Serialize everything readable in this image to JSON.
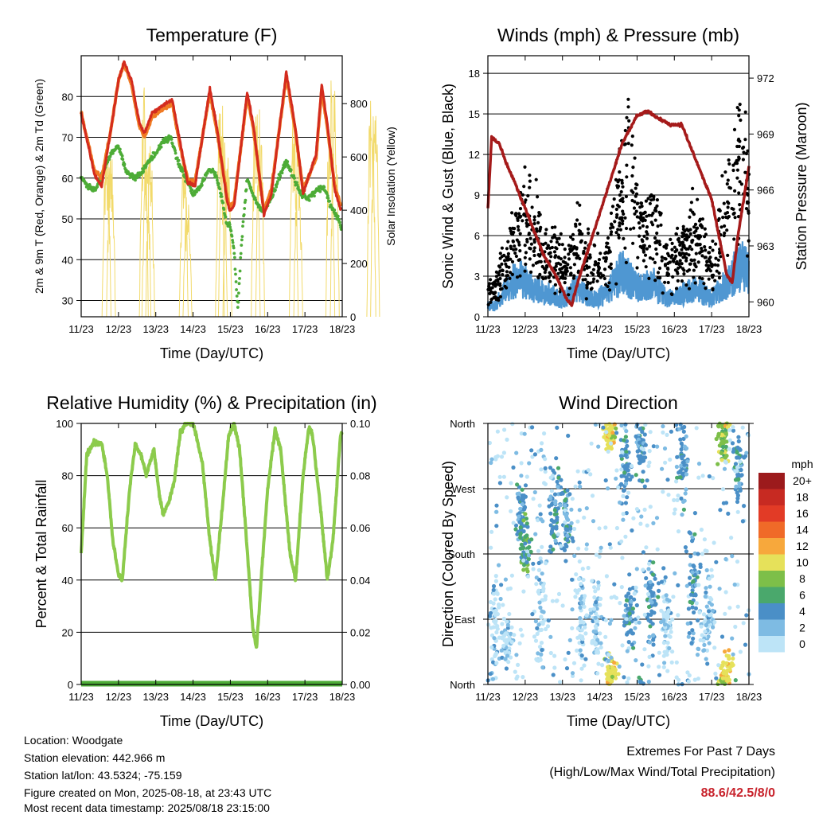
{
  "colors": {
    "temp_red": "#d32b1e",
    "temp_orange": "#f07a23",
    "dewpoint": "#4dac37",
    "solar": "#f2da6b",
    "wind": "#4f97d2",
    "gust": "#000000",
    "pressure": "#a51a1a",
    "rh": "#8ccb4c",
    "precip": "#4dac37",
    "extreme_value": "#c8232c"
  },
  "charts": [
    {
      "id": "temperature",
      "type": "line",
      "title": "Temperature (F)",
      "xlabel": "Time (Day/UTC)",
      "ylabel": "2m & 9m T (Red, Orange) & 2m Td (Green)",
      "y2label": "Solar Insolation (Yellow)",
      "x_ticks": [
        "11/23",
        "12/23",
        "13/23",
        "14/23",
        "15/23",
        "16/23",
        "17/23",
        "18/23"
      ],
      "ylim": [
        26,
        90
      ],
      "yticks": [
        30,
        40,
        50,
        60,
        70,
        80
      ],
      "y2lim": [
        0,
        980
      ],
      "y2ticks": [
        0,
        200,
        400,
        600,
        800
      ],
      "grid": true
    },
    {
      "id": "winds",
      "type": "scatter",
      "title": "Winds (mph) & Pressure (mb)",
      "xlabel": "Time (Day/UTC)",
      "ylabel": "Sonic Wind & Gust (Blue, Black)",
      "y2label": "Station Pressure (Maroon)",
      "x_ticks": [
        "11/23",
        "12/23",
        "13/23",
        "14/23",
        "15/23",
        "16/23",
        "17/23",
        "18/23"
      ],
      "ylim": [
        0,
        19.3
      ],
      "yticks": [
        0,
        3,
        6,
        9,
        12,
        15,
        18
      ],
      "y2lim": [
        959.2,
        973.2
      ],
      "y2ticks": [
        960,
        963,
        966,
        969,
        972
      ],
      "grid": true
    },
    {
      "id": "humidity",
      "type": "line",
      "title": "Relative Humidity (%) & Precipitation (in)",
      "xlabel": "Time (Day/UTC)",
      "ylabel": "Percent & Total Rainfall",
      "x_ticks": [
        "11/23",
        "12/23",
        "13/23",
        "14/23",
        "15/23",
        "16/23",
        "17/23",
        "18/23"
      ],
      "ylim": [
        0,
        100
      ],
      "yticks": [
        0,
        20,
        40,
        60,
        80,
        100
      ],
      "y2lim": [
        0,
        0.1
      ],
      "y2ticks": [
        "0.00",
        "0.02",
        "0.04",
        "0.06",
        "0.08",
        "0.10"
      ],
      "grid": true
    },
    {
      "id": "direction",
      "type": "scatter",
      "title": "Wind Direction",
      "xlabel": "Time (Day/UTC)",
      "ylabel": "Direction (Colored By Speed)",
      "x_ticks": [
        "11/23",
        "12/23",
        "13/23",
        "14/23",
        "15/23",
        "16/23",
        "17/23",
        "18/23"
      ],
      "ylim": [
        0,
        360
      ],
      "ytick_labels": [
        "North",
        "East",
        "South",
        "West",
        "North"
      ],
      "grid": true
    }
  ],
  "chart_data": {
    "x_unit": "days since 11/23 00 UTC",
    "temperature": {
      "t2m": [
        [
          0,
          76
        ],
        [
          0.35,
          61
        ],
        [
          0.55,
          58
        ],
        [
          0.8,
          72
        ],
        [
          1.0,
          84
        ],
        [
          1.15,
          88.3
        ],
        [
          1.35,
          84
        ],
        [
          1.55,
          74
        ],
        [
          1.7,
          71
        ],
        [
          1.9,
          76
        ],
        [
          2.2,
          78
        ],
        [
          2.45,
          79
        ],
        [
          2.65,
          69
        ],
        [
          2.85,
          59
        ],
        [
          3.05,
          58
        ],
        [
          3.45,
          82
        ],
        [
          3.65,
          72
        ],
        [
          3.9,
          55
        ],
        [
          3.98,
          52
        ],
        [
          4.1,
          53
        ],
        [
          4.45,
          81
        ],
        [
          4.62,
          73
        ],
        [
          4.9,
          51
        ],
        [
          5.1,
          56
        ],
        [
          5.5,
          86
        ],
        [
          5.75,
          72
        ],
        [
          5.95,
          56
        ],
        [
          6.3,
          66
        ],
        [
          6.45,
          83
        ],
        [
          6.62,
          72
        ],
        [
          6.8,
          57
        ],
        [
          7.0,
          51
        ],
        [
          7.2,
          44
        ],
        [
          7.4,
          50
        ],
        [
          7.72,
          72
        ],
        [
          7.9,
          62
        ]
      ],
      "t9m": [
        [
          0,
          76
        ],
        [
          0.35,
          62
        ],
        [
          0.55,
          60
        ],
        [
          0.8,
          72
        ],
        [
          1.0,
          84
        ],
        [
          1.15,
          88
        ],
        [
          1.35,
          83
        ],
        [
          1.55,
          73
        ],
        [
          1.7,
          70
        ],
        [
          1.9,
          75
        ],
        [
          2.2,
          77
        ],
        [
          2.45,
          78
        ],
        [
          2.65,
          68
        ],
        [
          2.85,
          60
        ],
        [
          3.05,
          59
        ],
        [
          3.45,
          81
        ],
        [
          3.65,
          71
        ],
        [
          3.9,
          56
        ],
        [
          3.98,
          53
        ],
        [
          4.1,
          54
        ],
        [
          4.45,
          80
        ],
        [
          4.62,
          72
        ],
        [
          4.9,
          52
        ],
        [
          5.1,
          57
        ],
        [
          5.5,
          85
        ],
        [
          5.75,
          71
        ],
        [
          5.95,
          57
        ],
        [
          6.3,
          65
        ],
        [
          6.45,
          82
        ],
        [
          6.62,
          71
        ],
        [
          6.8,
          58
        ],
        [
          7.0,
          52
        ],
        [
          7.2,
          45
        ],
        [
          7.4,
          51
        ],
        [
          7.72,
          71
        ],
        [
          7.9,
          62
        ]
      ],
      "dewpoint": [
        [
          0,
          60
        ],
        [
          0.2,
          58
        ],
        [
          0.4,
          57
        ],
        [
          0.6,
          62
        ],
        [
          0.8,
          66
        ],
        [
          1.0,
          68
        ],
        [
          1.2,
          62
        ],
        [
          1.4,
          60
        ],
        [
          1.6,
          61
        ],
        [
          1.8,
          64
        ],
        [
          2.0,
          66
        ],
        [
          2.2,
          69
        ],
        [
          2.4,
          70
        ],
        [
          2.6,
          64
        ],
        [
          2.8,
          60
        ],
        [
          3.0,
          56
        ],
        [
          3.2,
          58
        ],
        [
          3.4,
          62
        ],
        [
          3.6,
          61
        ],
        [
          3.75,
          56
        ],
        [
          3.9,
          49
        ],
        [
          4.0,
          48
        ],
        [
          4.1,
          42
        ],
        [
          4.2,
          28
        ],
        [
          4.3,
          44
        ],
        [
          4.45,
          60
        ],
        [
          4.65,
          55
        ],
        [
          4.85,
          52
        ],
        [
          5.1,
          55
        ],
        [
          5.3,
          60
        ],
        [
          5.5,
          64
        ],
        [
          5.7,
          60
        ],
        [
          5.9,
          56
        ],
        [
          6.1,
          55
        ],
        [
          6.3,
          57
        ],
        [
          6.5,
          58
        ],
        [
          6.7,
          53
        ],
        [
          6.9,
          50
        ],
        [
          7.1,
          44
        ],
        [
          7.3,
          38
        ],
        [
          7.45,
          37
        ],
        [
          7.6,
          40
        ],
        [
          7.75,
          46
        ],
        [
          7.9,
          48
        ]
      ],
      "solar_peaks": [
        [
          0.68,
          730
        ],
        [
          0.8,
          720
        ],
        [
          1.68,
          870
        ],
        [
          1.75,
          730
        ],
        [
          1.85,
          670
        ],
        [
          2.75,
          660
        ],
        [
          2.85,
          500
        ],
        [
          3.72,
          850
        ],
        [
          3.8,
          830
        ],
        [
          3.92,
          690
        ],
        [
          4.68,
          860
        ],
        [
          4.8,
          810
        ],
        [
          5.7,
          840
        ],
        [
          5.82,
          690
        ],
        [
          6.68,
          950
        ],
        [
          6.8,
          860
        ],
        [
          7.78,
          940
        ],
        [
          7.88,
          900
        ]
      ]
    },
    "winds": {
      "pressure": [
        [
          0,
          965.0
        ],
        [
          0.1,
          968.8
        ],
        [
          0.3,
          968.5
        ],
        [
          0.5,
          967.4
        ],
        [
          0.7,
          966.5
        ],
        [
          1.0,
          965.0
        ],
        [
          1.3,
          963.5
        ],
        [
          1.5,
          962.5
        ],
        [
          1.8,
          961.5
        ],
        [
          2.1,
          960.2
        ],
        [
          2.25,
          959.8
        ],
        [
          2.4,
          961.0
        ],
        [
          2.8,
          963.5
        ],
        [
          3.2,
          966.0
        ],
        [
          3.6,
          968.5
        ],
        [
          4.0,
          970.0
        ],
        [
          4.3,
          970.2
        ],
        [
          4.6,
          969.8
        ],
        [
          4.9,
          969.5
        ],
        [
          5.2,
          969.5
        ],
        [
          5.5,
          968.0
        ],
        [
          5.8,
          966.5
        ],
        [
          6.0,
          965.5
        ],
        [
          6.2,
          963.5
        ],
        [
          6.4,
          961.5
        ],
        [
          6.55,
          961.0
        ],
        [
          6.7,
          963.5
        ],
        [
          6.9,
          966.0
        ],
        [
          7.1,
          968.5
        ],
        [
          7.3,
          970.0
        ],
        [
          7.5,
          970.3
        ],
        [
          7.7,
          969.5
        ],
        [
          7.9,
          968.5
        ]
      ],
      "wind_centers": [
        [
          0.2,
          1.0
        ],
        [
          0.5,
          2.5
        ],
        [
          0.8,
          3.5
        ],
        [
          1.2,
          2.5
        ],
        [
          1.6,
          2.0
        ],
        [
          2.0,
          1.5
        ],
        [
          2.4,
          2.5
        ],
        [
          2.8,
          1.5
        ],
        [
          3.2,
          2.0
        ],
        [
          3.6,
          4.0
        ],
        [
          4.0,
          2.5
        ],
        [
          4.4,
          3.0
        ],
        [
          4.8,
          1.5
        ],
        [
          5.2,
          2.0
        ],
        [
          5.6,
          2.5
        ],
        [
          6.0,
          1.5
        ],
        [
          6.4,
          3.0
        ],
        [
          6.8,
          4.5
        ],
        [
          7.2,
          3.0
        ],
        [
          7.6,
          3.5
        ],
        [
          7.9,
          3.0
        ]
      ],
      "gust_centers": [
        [
          0.2,
          2.0
        ],
        [
          0.5,
          4.0
        ],
        [
          0.85,
          6.5
        ],
        [
          1.1,
          7.0
        ],
        [
          1.5,
          4.5
        ],
        [
          1.8,
          5.0
        ],
        [
          2.1,
          3.5
        ],
        [
          2.45,
          5.5
        ],
        [
          2.8,
          3.5
        ],
        [
          3.15,
          4.5
        ],
        [
          3.6,
          9.0
        ],
        [
          3.75,
          12.0
        ],
        [
          4.1,
          6.0
        ],
        [
          4.45,
          7.5
        ],
        [
          4.8,
          4.0
        ],
        [
          5.2,
          4.5
        ],
        [
          5.6,
          6.0
        ],
        [
          6.0,
          3.5
        ],
        [
          6.45,
          8.0
        ],
        [
          6.75,
          11.0
        ],
        [
          7.1,
          6.5
        ],
        [
          7.4,
          6.0
        ],
        [
          7.75,
          8.0
        ],
        [
          7.9,
          6.0
        ]
      ]
    },
    "humidity": {
      "rh": [
        [
          0,
          50
        ],
        [
          0.15,
          88
        ],
        [
          0.35,
          93
        ],
        [
          0.55,
          92
        ],
        [
          0.7,
          80
        ],
        [
          0.85,
          55
        ],
        [
          1.0,
          42
        ],
        [
          1.1,
          40
        ],
        [
          1.3,
          75
        ],
        [
          1.45,
          92
        ],
        [
          1.6,
          88
        ],
        [
          1.75,
          80
        ],
        [
          1.95,
          90
        ],
        [
          2.1,
          72
        ],
        [
          2.2,
          65
        ],
        [
          2.35,
          70
        ],
        [
          2.5,
          78
        ],
        [
          2.65,
          96
        ],
        [
          2.8,
          100
        ],
        [
          3.0,
          100
        ],
        [
          3.25,
          85
        ],
        [
          3.45,
          55
        ],
        [
          3.6,
          40
        ],
        [
          3.8,
          70
        ],
        [
          3.95,
          95
        ],
        [
          4.1,
          100
        ],
        [
          4.25,
          90
        ],
        [
          4.45,
          52
        ],
        [
          4.6,
          22
        ],
        [
          4.7,
          14
        ],
        [
          4.85,
          45
        ],
        [
          5.0,
          75
        ],
        [
          5.2,
          98
        ],
        [
          5.35,
          90
        ],
        [
          5.6,
          50
        ],
        [
          5.75,
          40
        ],
        [
          5.95,
          80
        ],
        [
          6.1,
          98
        ],
        [
          6.2,
          96
        ],
        [
          6.4,
          70
        ],
        [
          6.6,
          40
        ],
        [
          6.75,
          55
        ],
        [
          6.95,
          95
        ],
        [
          7.1,
          100
        ],
        [
          7.3,
          80
        ],
        [
          7.5,
          40
        ],
        [
          7.65,
          30
        ],
        [
          7.8,
          35
        ],
        [
          7.92,
          56
        ]
      ],
      "precip_total": [
        [
          0,
          0
        ],
        [
          7.92,
          0
        ]
      ]
    },
    "direction": {
      "speed_scale": [
        "0",
        "2",
        "4",
        "6",
        "8",
        "10",
        "12",
        "14",
        "16",
        "18",
        "20+"
      ],
      "speed_colors": [
        "#bde4f7",
        "#7ebbe3",
        "#4a8fc7",
        "#4aa86c",
        "#7dbf49",
        "#e6e15a",
        "#f7a83c",
        "#f06a28",
        "#e23b26",
        "#c72a22",
        "#9c1a1c"
      ],
      "clusters": [
        [
          0.2,
          80,
          60,
          1
        ],
        [
          0.5,
          60,
          30,
          1
        ],
        [
          0.9,
          240,
          40,
          2
        ],
        [
          1.0,
          190,
          30,
          3
        ],
        [
          1.4,
          120,
          80,
          1
        ],
        [
          1.8,
          250,
          50,
          2
        ],
        [
          2.1,
          220,
          40,
          2
        ],
        [
          2.5,
          100,
          60,
          1
        ],
        [
          2.9,
          80,
          50,
          1
        ],
        [
          3.25,
          345,
          20,
          5
        ],
        [
          3.3,
          15,
          20,
          5
        ],
        [
          3.7,
          300,
          40,
          2
        ],
        [
          3.8,
          100,
          40,
          2
        ],
        [
          4.1,
          330,
          40,
          2
        ],
        [
          4.4,
          110,
          50,
          2
        ],
        [
          4.8,
          80,
          40,
          1
        ],
        [
          5.2,
          310,
          50,
          2
        ],
        [
          5.5,
          150,
          60,
          2
        ],
        [
          5.9,
          90,
          40,
          1
        ],
        [
          6.3,
          340,
          30,
          4
        ],
        [
          6.4,
          20,
          20,
          5
        ],
        [
          6.7,
          300,
          40,
          2
        ],
        [
          7.1,
          330,
          30,
          2
        ],
        [
          7.4,
          60,
          40,
          4
        ],
        [
          7.6,
          30,
          30,
          5
        ],
        [
          7.85,
          330,
          40,
          2
        ]
      ]
    }
  },
  "legend": {
    "unit": "mph",
    "labels": [
      "20+",
      "18",
      "16",
      "14",
      "12",
      "10",
      "8",
      "6",
      "4",
      "2",
      "0"
    ]
  },
  "info": {
    "location": "Location: Woodgate",
    "elevation": "Station elevation: 442.966 m",
    "latlon": "Station lat/lon: 43.5324; -75.159",
    "created": "Figure created on Mon, 2025-08-18, at 23:43 UTC",
    "recent": "Most recent data timestamp: 2025/08/18 23:15:00"
  },
  "extremes": {
    "title": "Extremes For Past 7 Days",
    "subtitle": "(High/Low/Max Wind/Total Precipitation)",
    "values": "88.6/42.5/8/0"
  }
}
